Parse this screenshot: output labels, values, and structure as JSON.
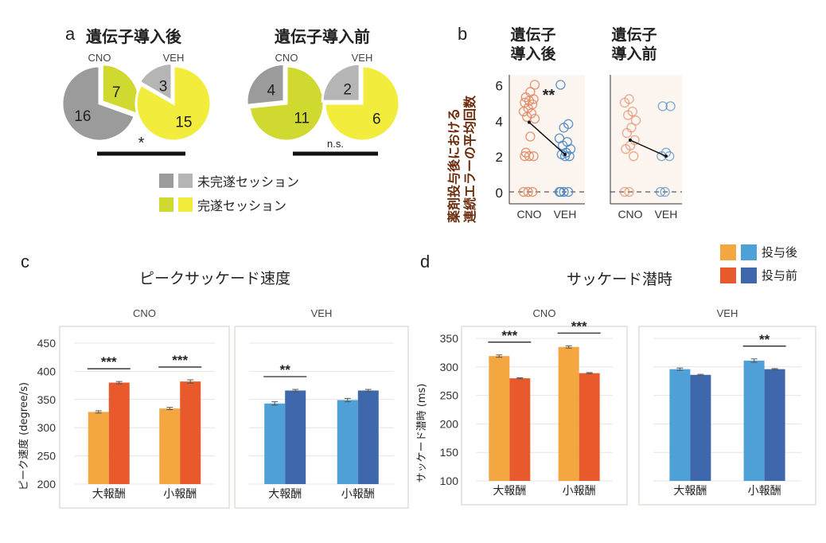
{
  "panels": {
    "a": {
      "letter": "a"
    },
    "b": {
      "letter": "b"
    },
    "c": {
      "letter": "c"
    },
    "d": {
      "letter": "d"
    }
  },
  "colors": {
    "incomplete_cno": "#9b9b9b",
    "incomplete_veh": "#b5b5b5",
    "complete_cno": "#cfd930",
    "complete_veh": "#f2ec3c",
    "cno_after": "#f4a640",
    "cno_before": "#e85a2c",
    "veh_after": "#4fa0d6",
    "veh_before": "#3e68ab",
    "scatter_cno": "#e08a64",
    "scatter_veh": "#4a8ac8"
  },
  "chart_data": [
    {
      "id": "a",
      "type": "pie",
      "groups": [
        {
          "title": "遺伝子導入後",
          "significance": "*",
          "pies": [
            {
              "label": "CNO",
              "slices": [
                {
                  "name": "未完遂セッション",
                  "value": 16
                },
                {
                  "name": "完遂セッション",
                  "value": 7
                }
              ]
            },
            {
              "label": "VEH",
              "slices": [
                {
                  "name": "未完遂セッション",
                  "value": 3
                },
                {
                  "name": "完遂セッション",
                  "value": 15
                }
              ]
            }
          ]
        },
        {
          "title": "遺伝子導入前",
          "significance": "n.s.",
          "pies": [
            {
              "label": "CNO",
              "slices": [
                {
                  "name": "未完遂セッション",
                  "value": 4
                },
                {
                  "name": "完遂セッション",
                  "value": 11
                }
              ]
            },
            {
              "label": "VEH",
              "slices": [
                {
                  "name": "未完遂セッション",
                  "value": 2
                },
                {
                  "name": "完遂セッション",
                  "value": 6
                }
              ]
            }
          ]
        }
      ],
      "legend": [
        "未完遂セッション",
        "完遂セッション"
      ]
    },
    {
      "id": "b",
      "type": "scatter",
      "ylabel_lines": [
        "薬剤投与後における",
        "連続エラーの平均回数"
      ],
      "yticks": [
        0,
        2,
        4,
        6
      ],
      "ylim": [
        -0.4,
        6.2
      ],
      "categories": [
        "CNO",
        "VEH"
      ],
      "subplots": [
        {
          "title_lines": [
            "遺伝子",
            "導入後"
          ],
          "significance": "**",
          "means": [
            3.9,
            2.1
          ],
          "points": {
            "CNO": [
              0,
              0,
              0,
              2,
              2,
              2,
              2.2,
              3.1,
              4.1,
              4.2,
              4.4,
              4.5,
              4.7,
              4.9,
              5.0,
              5.1,
              5.2,
              5.3,
              5.6,
              6.0
            ],
            "VEH": [
              0,
              0,
              0,
              0,
              2.0,
              2.0,
              2.1,
              2.2,
              2.4,
              2.6,
              2.8,
              3.0,
              3.6,
              3.8,
              6.0
            ]
          }
        },
        {
          "title_lines": [
            "遺伝子",
            "導入前"
          ],
          "significance": "",
          "means": [
            2.9,
            2.0
          ],
          "points": {
            "CNO": [
              0,
              0,
              2.0,
              2.4,
              2.6,
              2.9,
              3.3,
              3.6,
              4.0,
              4.3,
              4.5,
              5.0,
              5.2
            ],
            "VEH": [
              0,
              0,
              2.0,
              2.0,
              2.2,
              4.8,
              4.8
            ]
          }
        }
      ]
    },
    {
      "id": "c",
      "type": "bar",
      "title": "ピークサッケード速度",
      "ylabel": "ピーク速度 (degree/s)",
      "ylim": [
        200,
        450
      ],
      "yticks": [
        200,
        250,
        300,
        350,
        400,
        450
      ],
      "categories": [
        "大報酬",
        "小報酬"
      ],
      "subplots": [
        {
          "title": "CNO",
          "series": [
            {
              "name": "投与後",
              "values": [
                328,
                334
              ],
              "err": [
                2,
                2
              ]
            },
            {
              "name": "投与前",
              "values": [
                380,
                382
              ],
              "err": [
                2,
                3
              ]
            }
          ],
          "significance": [
            "***",
            "***"
          ]
        },
        {
          "title": "VEH",
          "series": [
            {
              "name": "投与後",
              "values": [
                343,
                349
              ],
              "err": [
                3,
                3
              ]
            },
            {
              "name": "投与前",
              "values": [
                366,
                366
              ],
              "err": [
                2,
                2
              ]
            }
          ],
          "significance": [
            "**",
            ""
          ]
        }
      ]
    },
    {
      "id": "d",
      "type": "bar",
      "title": "サッケード潜時",
      "ylabel": "サッケード潜時 (ms)",
      "ylim": [
        100,
        350
      ],
      "yticks": [
        100,
        150,
        200,
        250,
        300,
        350
      ],
      "categories": [
        "大報酬",
        "小報酬"
      ],
      "legend": [
        {
          "label": "投与後",
          "colors": [
            "#f4a640",
            "#4fa0d6"
          ]
        },
        {
          "label": "投与前",
          "colors": [
            "#e85a2c",
            "#3e68ab"
          ]
        }
      ],
      "subplots": [
        {
          "title": "CNO",
          "series": [
            {
              "name": "投与後",
              "values": [
                319,
                335
              ],
              "err": [
                2,
                2
              ]
            },
            {
              "name": "投与前",
              "values": [
                280,
                289
              ],
              "err": [
                1,
                1
              ]
            }
          ],
          "significance": [
            "***",
            "***"
          ]
        },
        {
          "title": "VEH",
          "series": [
            {
              "name": "投与後",
              "values": [
                296,
                311
              ],
              "err": [
                2,
                3
              ]
            },
            {
              "name": "投与前",
              "values": [
                286,
                296
              ],
              "err": [
                1,
                1
              ]
            }
          ],
          "significance": [
            "",
            "**"
          ]
        }
      ]
    }
  ]
}
